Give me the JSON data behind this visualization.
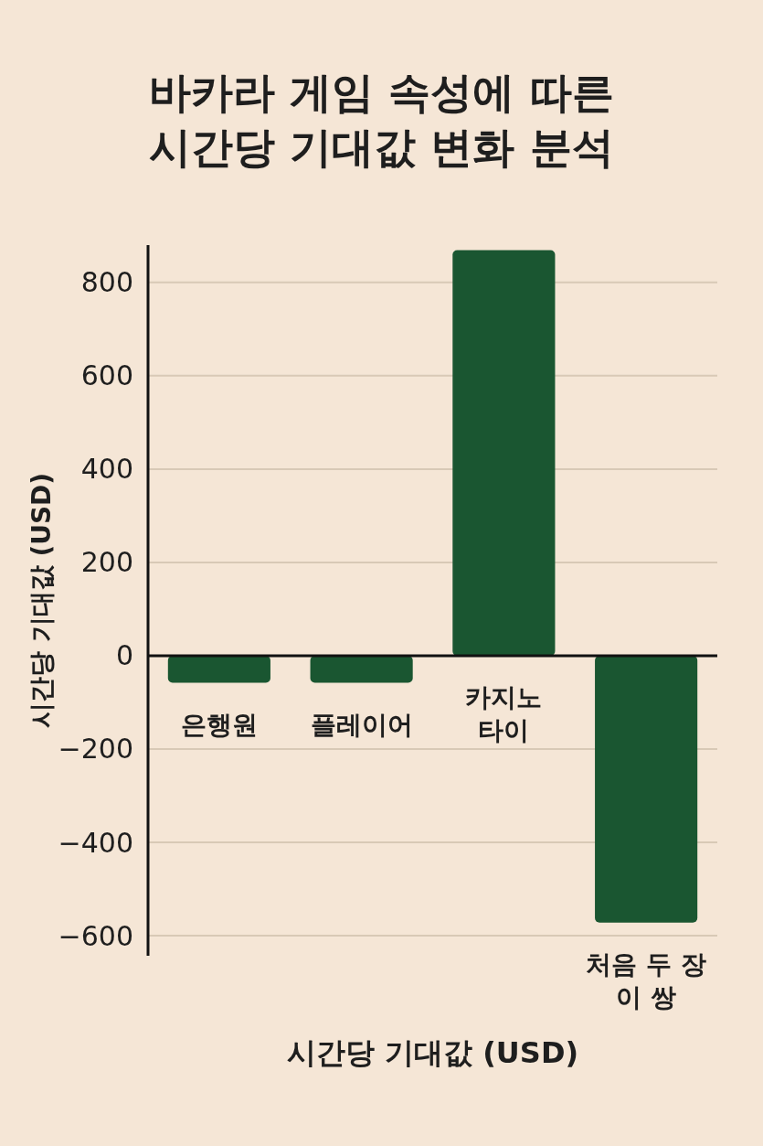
{
  "chart_data": {
    "type": "bar",
    "title": "바카라 게임 속성에 따른 시간당 기대값 변화 분석",
    "xlabel": "시간당 기대값 (USD)",
    "ylabel": "시간당 기대값 (USD)",
    "categories": [
      "은행원",
      "플레이어",
      "카지노 타이",
      "처음 두 장 이 쌍"
    ],
    "values": [
      -58,
      -58,
      869,
      -572
    ],
    "color": "#1a5631",
    "ylim": [
      -643,
      880
    ],
    "yticks": [
      {
        "value": -600,
        "label": "−600"
      },
      {
        "value": -400,
        "label": "−400"
      },
      {
        "value": -200,
        "label": "−200"
      },
      0,
      200,
      400,
      600,
      800
    ],
    "grid": "y"
  }
}
